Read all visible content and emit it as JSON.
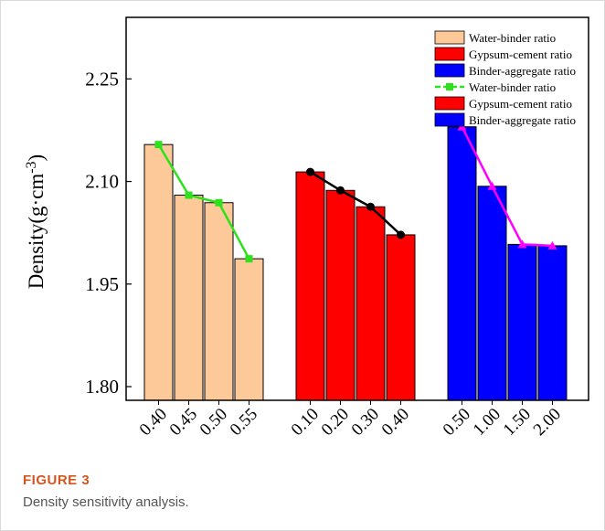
{
  "chart_data": {
    "type": "bar",
    "ylabel": "Density(g·cm",
    "ylabel_sup": "-3",
    "ylabel_close": ")",
    "ylim": [
      1.78,
      2.34
    ],
    "yticks": [
      "1.80",
      "1.95",
      "2.10",
      "2.25"
    ],
    "ytick_values": [
      1.8,
      1.95,
      2.1,
      2.25
    ],
    "grid": false,
    "legend_position": "top-right",
    "groups": [
      {
        "name": "Water-binder ratio",
        "categories": [
          "0.40",
          "0.45",
          "0.50",
          "0.55"
        ],
        "values": [
          2.154,
          2.08,
          2.069,
          1.987
        ],
        "bar_color": "#fdc998",
        "line_color": "#2de21c",
        "marker": "square"
      },
      {
        "name": "Gypsum-cement ratio",
        "categories": [
          "0.10",
          "0.20",
          "0.30",
          "0.40"
        ],
        "values": [
          2.114,
          2.087,
          2.063,
          2.022
        ],
        "bar_color": "#ff0000",
        "line_color": "#000000",
        "marker": "circle"
      },
      {
        "name": "Binder-aggregate ratio",
        "categories": [
          "0.50",
          "1.00",
          "1.50",
          "2.00"
        ],
        "values": [
          2.18,
          2.093,
          2.008,
          2.006
        ],
        "bar_color": "#0000ff",
        "line_color": "#ff00ff",
        "marker": "triangle"
      }
    ],
    "legend": [
      {
        "label": "Water-binder ratio",
        "kind": "bar",
        "color": "#fdc998"
      },
      {
        "label": "Gypsum-cement ratio",
        "kind": "bar",
        "color": "#ff0000"
      },
      {
        "label": "Binder-aggregate ratio",
        "kind": "bar",
        "color": "#0000ff"
      },
      {
        "label": "Water-binder ratio",
        "kind": "line",
        "color": "#2de21c"
      },
      {
        "label": "Gypsum-cement ratio",
        "kind": "bar",
        "color": "#ff0000"
      },
      {
        "label": "Binder-aggregate ratio",
        "kind": "bar",
        "color": "#0000ff"
      }
    ]
  },
  "figure": {
    "label": "FIGURE 3",
    "caption": "Density sensitivity analysis."
  }
}
